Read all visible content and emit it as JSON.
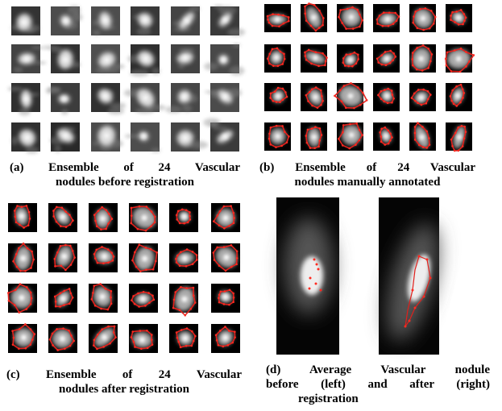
{
  "panels": [
    {
      "caption_lines": [
        "(a) Ensemble of 24 Vascular",
        "nodules before registration"
      ]
    },
    {
      "caption_lines": [
        "(b) Ensemble of 24 Vascular",
        "nodules manually annotated"
      ]
    },
    {
      "caption_lines": [
        "(c) Ensemble of 24 Vascular",
        "nodules after registration"
      ]
    },
    {
      "caption_lines": [
        "(d) Average Vascular nodule",
        "before (left) and after (right)",
        "registration"
      ]
    }
  ]
}
